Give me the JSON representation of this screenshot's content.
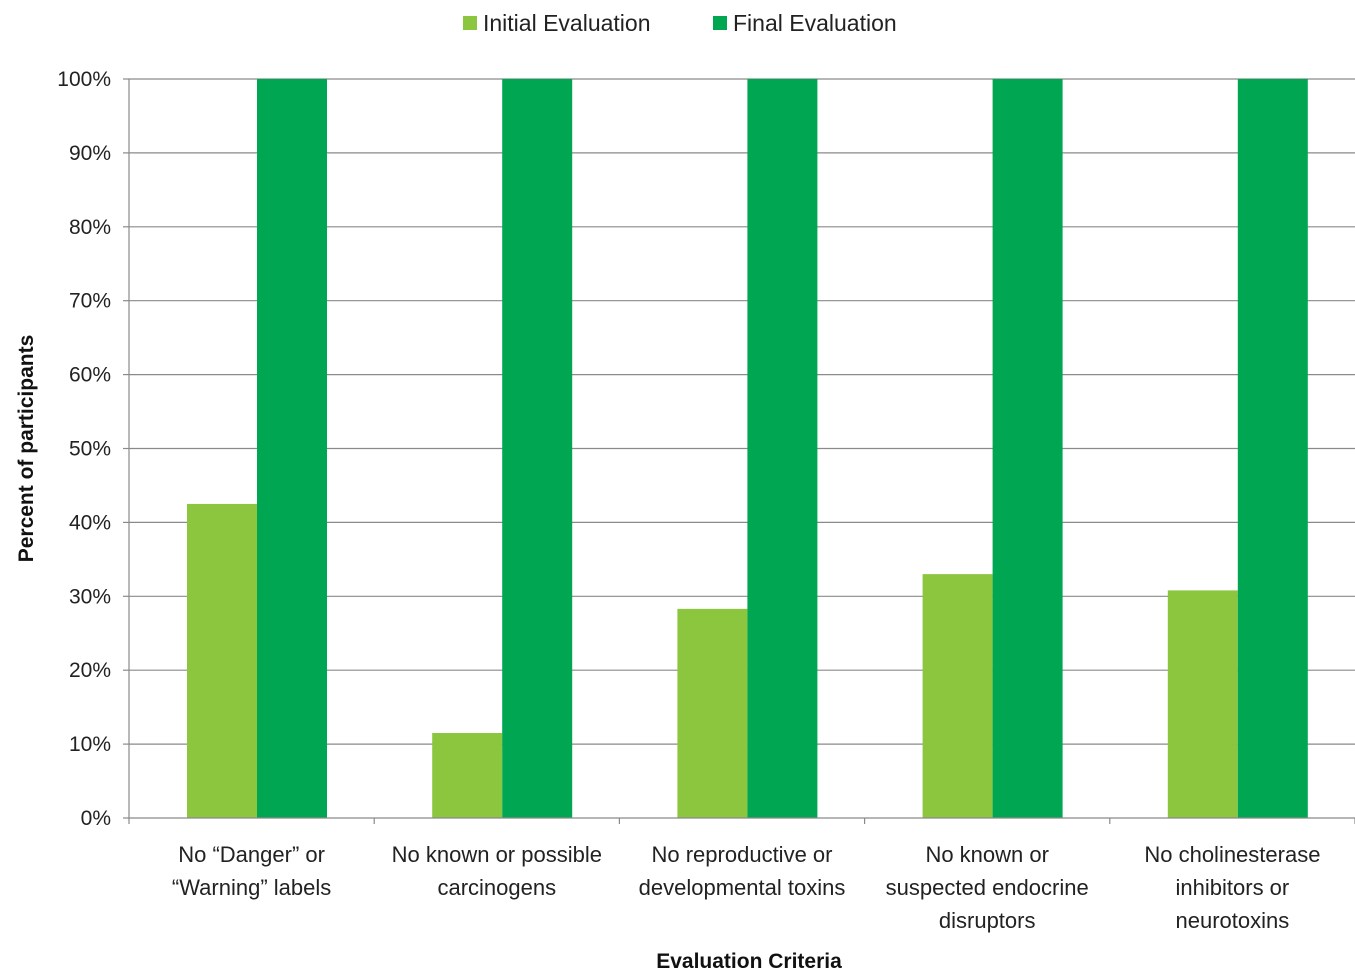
{
  "chart_data": {
    "type": "bar",
    "title": "",
    "xlabel": "Evaluation Criteria",
    "ylabel": "Percent of participants",
    "ylim": [
      0,
      100
    ],
    "yticks": [
      0,
      10,
      20,
      30,
      40,
      50,
      60,
      70,
      80,
      90,
      100
    ],
    "ytick_labels": [
      "0%",
      "10%",
      "20%",
      "30%",
      "40%",
      "50%",
      "60%",
      "70%",
      "80%",
      "90%",
      "100%"
    ],
    "grid": true,
    "legend_position": "top-center",
    "categories": [
      [
        "No “Danger” or",
        "“Warning” labels"
      ],
      [
        "No known or possible",
        "carcinogens"
      ],
      [
        "No reproductive or",
        "developmental toxins"
      ],
      [
        "No known or",
        "suspected endocrine",
        "disruptors"
      ],
      [
        "No cholinesterase",
        "inhibitors or",
        "neurotoxins"
      ]
    ],
    "series": [
      {
        "name": "Initial Evaluation",
        "color": "#8cc63f",
        "values": [
          42.5,
          11.5,
          28.3,
          33.0,
          30.8
        ]
      },
      {
        "name": "Final Evaluation",
        "color": "#00a651",
        "values": [
          100,
          100,
          100,
          100,
          100
        ]
      }
    ]
  }
}
